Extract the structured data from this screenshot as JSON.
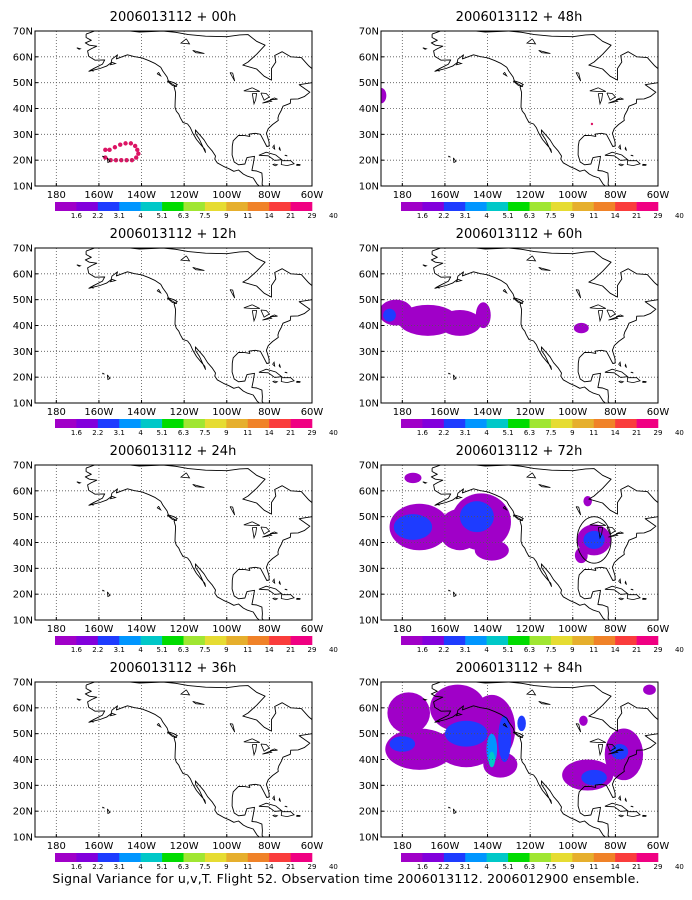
{
  "figure": {
    "caption": "Signal Variance for u,v,T. Flight 52. Observation time 2006013112. 2006012900 ensemble.",
    "lat_labels": [
      "10N",
      "20N",
      "30N",
      "40N",
      "50N",
      "60N",
      "70N"
    ],
    "lon_labels": [
      "180",
      "160W",
      "140W",
      "120W",
      "100W",
      "80W",
      "60W"
    ],
    "colorbar": {
      "labels": [
        "1.6",
        "2.2",
        "3.1",
        "4",
        "5.1",
        "6.3",
        "7.5",
        "9",
        "11",
        "14",
        "21",
        "29",
        "40"
      ],
      "colors": [
        "#a000c8",
        "#8200dc",
        "#1e3cff",
        "#0096ff",
        "#00c8c8",
        "#00dc00",
        "#a0e632",
        "#e6dc32",
        "#e6af2d",
        "#f08228",
        "#fa3c3c",
        "#f00082"
      ]
    }
  },
  "panels": [
    {
      "title": "2006013112 + 00h",
      "lead_hours": 0
    },
    {
      "title": "2006013112 + 48h",
      "lead_hours": 48
    },
    {
      "title": "2006013112 + 12h",
      "lead_hours": 12
    },
    {
      "title": "2006013112 + 60h",
      "lead_hours": 60
    },
    {
      "title": "2006013112 + 24h",
      "lead_hours": 24
    },
    {
      "title": "2006013112 + 72h",
      "lead_hours": 72
    },
    {
      "title": "2006013112 + 36h",
      "lead_hours": 36
    },
    {
      "title": "2006013112 + 84h",
      "lead_hours": 84
    }
  ]
}
